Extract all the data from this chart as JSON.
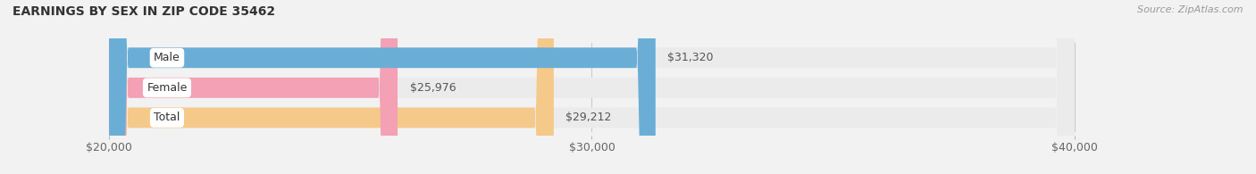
{
  "title": "EARNINGS BY SEX IN ZIP CODE 35462",
  "source": "Source: ZipAtlas.com",
  "categories": [
    "Male",
    "Female",
    "Total"
  ],
  "values": [
    31320,
    25976,
    29212
  ],
  "bar_colors": [
    "#6aaed6",
    "#f4a0b5",
    "#f5c98a"
  ],
  "bar_bg_color": "#e8e8e8",
  "xlim_min": 20000,
  "xlim_max": 40000,
  "xticks": [
    20000,
    30000,
    40000
  ],
  "xtick_labels": [
    "$20,000",
    "$30,000",
    "$40,000"
  ],
  "value_labels": [
    "$31,320",
    "$25,976",
    "$29,212"
  ],
  "title_fontsize": 10,
  "bar_label_fontsize": 9,
  "tick_fontsize": 9,
  "source_fontsize": 8,
  "fig_bg_color": "#f2f2f2",
  "bar_bg_color2": "#ebebeb"
}
